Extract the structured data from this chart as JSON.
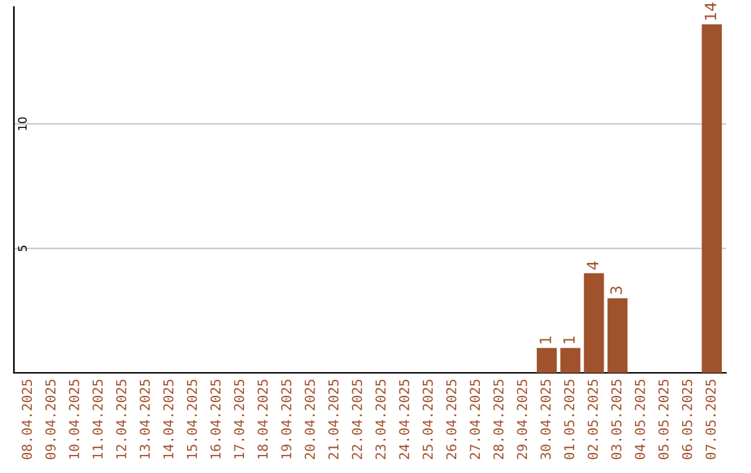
{
  "chart_data": {
    "type": "bar",
    "categories": [
      "08.04.2025",
      "09.04.2025",
      "10.04.2025",
      "11.04.2025",
      "12.04.2025",
      "13.04.2025",
      "14.04.2025",
      "15.04.2025",
      "16.04.2025",
      "17.04.2025",
      "18.04.2025",
      "19.04.2025",
      "20.04.2025",
      "21.04.2025",
      "22.04.2025",
      "23.04.2025",
      "24.04.2025",
      "25.04.2025",
      "26.04.2025",
      "27.04.2025",
      "28.04.2025",
      "29.04.2025",
      "30.04.2025",
      "01.05.2025",
      "02.05.2025",
      "03.05.2025",
      "04.05.2025",
      "05.05.2025",
      "06.05.2025",
      "07.05.2025"
    ],
    "values": [
      0,
      0,
      0,
      0,
      0,
      0,
      0,
      0,
      0,
      0,
      0,
      0,
      0,
      0,
      0,
      0,
      0,
      0,
      0,
      0,
      0,
      0,
      1,
      1,
      4,
      3,
      0,
      0,
      0,
      14
    ],
    "value_labels": [
      null,
      null,
      null,
      null,
      null,
      null,
      null,
      null,
      null,
      null,
      null,
      null,
      null,
      null,
      null,
      null,
      null,
      null,
      null,
      null,
      null,
      null,
      "1",
      "1",
      "4",
      "3",
      null,
      null,
      null,
      "14"
    ],
    "color": "#a0522d",
    "ylim": [
      0,
      14.7
    ],
    "yticks": [
      5,
      10
    ],
    "grid": "y"
  }
}
